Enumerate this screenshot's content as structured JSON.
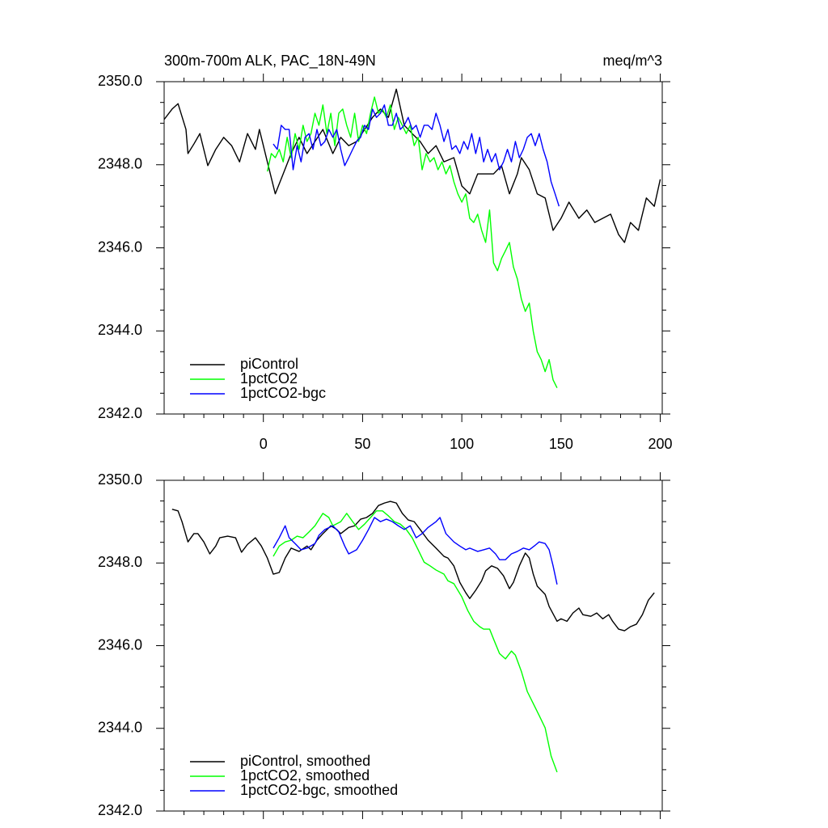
{
  "chart_data": [
    {
      "type": "line",
      "title": "300m-700m ALK, PAC_18N-49N",
      "units_label": "meq/m^3",
      "xlim": [
        -50,
        201
      ],
      "ylim": [
        2342,
        2350
      ],
      "xticks": [
        0,
        50,
        100,
        150,
        200
      ],
      "xminorticks": [
        -40,
        -30,
        -20,
        -10,
        10,
        20,
        30,
        40,
        60,
        70,
        80,
        90,
        110,
        120,
        130,
        140,
        160,
        170,
        180,
        190
      ],
      "yticks": [
        {
          "value": 2342,
          "label": "2342.0"
        },
        {
          "value": 2344,
          "label": "2344.0"
        },
        {
          "value": 2346,
          "label": "2346.0"
        },
        {
          "value": 2348,
          "label": "2348.0"
        },
        {
          "value": 2350,
          "label": "2350.0"
        }
      ],
      "yminorticks": [
        2342.5,
        2343,
        2343.5,
        2344.5,
        2345,
        2345.5,
        2346.5,
        2347,
        2347.5,
        2348.5,
        2349,
        2349.5
      ],
      "xtick_labels": true,
      "legend": "lower left",
      "series": [
        {
          "name": "piControl",
          "color": "#000000",
          "x": [
            -50,
            -46,
            -43,
            -39,
            -38,
            -35,
            -32,
            -28,
            -24,
            -20,
            -16,
            -12,
            -8,
            -4,
            -2,
            2,
            6,
            10,
            14,
            18,
            22,
            26,
            30,
            35,
            39,
            43,
            47,
            51,
            55,
            59,
            63,
            67,
            71,
            75,
            79,
            83,
            87,
            91,
            96,
            100,
            104,
            108,
            112,
            116,
            120,
            124,
            128,
            130,
            134,
            138,
            142,
            146,
            150,
            154,
            159,
            163,
            167,
            171,
            175,
            179,
            182,
            185,
            189,
            193,
            197,
            200
          ],
          "values": [
            2349.09,
            2349.34,
            2349.47,
            2348.85,
            2348.27,
            2348.5,
            2348.75,
            2347.98,
            2348.37,
            2348.66,
            2348.46,
            2348.07,
            2348.75,
            2348.37,
            2348.85,
            2348.07,
            2347.3,
            2347.78,
            2348.27,
            2348.66,
            2348.27,
            2348.56,
            2348.85,
            2348.27,
            2348.66,
            2348.46,
            2348.56,
            2348.85,
            2349.14,
            2349.34,
            2349.14,
            2349.82,
            2348.95,
            2348.75,
            2348.56,
            2348.27,
            2348.46,
            2348.07,
            2348.17,
            2347.49,
            2347.3,
            2347.78,
            2347.78,
            2347.78,
            2347.98,
            2347.3,
            2347.78,
            2348.17,
            2347.88,
            2347.3,
            2347.2,
            2346.42,
            2346.71,
            2347.1,
            2346.71,
            2346.91,
            2346.61,
            2346.71,
            2346.81,
            2346.32,
            2346.13,
            2346.61,
            2346.42,
            2347.2,
            2347.0,
            2347.65
          ]
        },
        {
          "name": "1pctCO2",
          "color": "#00ff00",
          "x": [
            2,
            4,
            6,
            8,
            10,
            12,
            14,
            16,
            18,
            20,
            22,
            24,
            26,
            28,
            30,
            32,
            34,
            36,
            38,
            40,
            42,
            44,
            46,
            48,
            50,
            52,
            54,
            56,
            58,
            60,
            62,
            64,
            66,
            68,
            70,
            72,
            74,
            76,
            78,
            80,
            82,
            84,
            86,
            88,
            90,
            92,
            94,
            96,
            98,
            100,
            102,
            104,
            106,
            108,
            110,
            112,
            114,
            116,
            118,
            120,
            122,
            124,
            126,
            128,
            130,
            132,
            134,
            136,
            138,
            140,
            142,
            144,
            146,
            148
          ],
          "values": [
            2347.84,
            2348.27,
            2348.17,
            2348.37,
            2348.07,
            2348.66,
            2348.17,
            2348.75,
            2348.37,
            2348.95,
            2348.56,
            2348.75,
            2349.24,
            2348.95,
            2349.44,
            2348.75,
            2349.24,
            2348.46,
            2349.24,
            2349.34,
            2348.95,
            2348.66,
            2349.24,
            2348.56,
            2348.95,
            2348.75,
            2349.24,
            2349.63,
            2349.24,
            2349.34,
            2349.14,
            2349.44,
            2348.85,
            2349.14,
            2348.95,
            2348.75,
            2348.95,
            2348.46,
            2348.66,
            2347.88,
            2348.27,
            2348.07,
            2348.17,
            2347.88,
            2348.07,
            2347.78,
            2347.98,
            2347.59,
            2347.3,
            2347.1,
            2347.3,
            2346.71,
            2346.61,
            2346.81,
            2346.42,
            2346.13,
            2346.91,
            2345.64,
            2345.45,
            2345.74,
            2345.93,
            2346.13,
            2345.54,
            2345.25,
            2344.77,
            2344.47,
            2344.67,
            2343.99,
            2343.5,
            2343.31,
            2343.02,
            2343.31,
            2342.82,
            2342.63
          ]
        },
        {
          "name": "1pctCO2-bgc",
          "color": "#0000ff",
          "x": [
            5,
            7,
            9,
            11,
            13,
            15,
            17,
            19,
            21,
            23,
            25,
            27,
            29,
            31,
            33,
            35,
            37,
            39,
            41,
            43,
            45,
            47,
            49,
            51,
            53,
            55,
            57,
            59,
            61,
            63,
            65,
            67,
            69,
            71,
            73,
            75,
            77,
            79,
            81,
            83,
            85,
            87,
            89,
            91,
            93,
            95,
            97,
            99,
            101,
            103,
            105,
            107,
            109,
            111,
            113,
            115,
            117,
            119,
            121,
            123,
            125,
            127,
            129,
            131,
            133,
            135,
            137,
            139,
            141,
            143,
            145,
            147,
            149
          ],
          "values": [
            2348.5,
            2348.37,
            2348.95,
            2348.85,
            2348.85,
            2347.88,
            2348.46,
            2348.07,
            2348.66,
            2348.75,
            2348.37,
            2348.85,
            2348.46,
            2348.56,
            2348.85,
            2348.66,
            2348.85,
            2348.37,
            2347.98,
            2348.17,
            2348.37,
            2348.56,
            2348.66,
            2348.95,
            2348.85,
            2349.34,
            2349.14,
            2349.24,
            2349.44,
            2348.95,
            2348.95,
            2349.24,
            2348.85,
            2348.95,
            2349.14,
            2348.85,
            2348.95,
            2348.66,
            2348.95,
            2348.95,
            2348.85,
            2349.24,
            2348.95,
            2348.56,
            2348.85,
            2348.37,
            2348.46,
            2348.27,
            2348.56,
            2348.37,
            2348.75,
            2348.27,
            2348.66,
            2348.07,
            2348.37,
            2348.07,
            2348.27,
            2347.88,
            2348.07,
            2348.37,
            2348.07,
            2348.56,
            2348.17,
            2348.37,
            2348.66,
            2348.75,
            2348.46,
            2348.75,
            2348.37,
            2348.07,
            2347.59,
            2347.3,
            2347.0
          ]
        }
      ]
    },
    {
      "type": "line",
      "xlim": [
        -50,
        201
      ],
      "ylim": [
        2342,
        2350
      ],
      "xticks": [
        0,
        50,
        100,
        150,
        200
      ],
      "xminorticks": [
        -40,
        -30,
        -20,
        -10,
        10,
        20,
        30,
        40,
        60,
        70,
        80,
        90,
        110,
        120,
        130,
        140,
        160,
        170,
        180,
        190
      ],
      "yticks": [
        {
          "value": 2342,
          "label": "2342.0"
        },
        {
          "value": 2344,
          "label": "2344.0"
        },
        {
          "value": 2346,
          "label": "2346.0"
        },
        {
          "value": 2348,
          "label": "2348.0"
        },
        {
          "value": 2350,
          "label": "2350.0"
        }
      ],
      "yminorticks": [
        2342.5,
        2343,
        2343.5,
        2344.5,
        2345,
        2345.5,
        2346.5,
        2347,
        2347.5,
        2348.5,
        2349,
        2349.5
      ],
      "xtick_labels": false,
      "legend": "lower left",
      "series": [
        {
          "name": "piControl, smoothed",
          "color": "#000000",
          "x": [
            -46,
            -43,
            -41,
            -38,
            -35,
            -33,
            -30,
            -27,
            -24,
            -22,
            -18,
            -14,
            -11,
            -8,
            -4,
            -1,
            2,
            5,
            8,
            11,
            14,
            18,
            22,
            24,
            27,
            30,
            34,
            37,
            39,
            43,
            46,
            49,
            52,
            55,
            58,
            61,
            64,
            67,
            70,
            73,
            76,
            79,
            83,
            87,
            91,
            93,
            96,
            99,
            102,
            104,
            107,
            110,
            112,
            115,
            118,
            121,
            124,
            126,
            129,
            132,
            134,
            136,
            138,
            140,
            142,
            144,
            148,
            150,
            153,
            156,
            159,
            161,
            165,
            168,
            171,
            174,
            176,
            179,
            182,
            185,
            188,
            191,
            194,
            197
          ],
          "values": [
            2349.3,
            2349.26,
            2349.0,
            2348.51,
            2348.71,
            2348.71,
            2348.51,
            2348.22,
            2348.41,
            2348.61,
            2348.65,
            2348.61,
            2348.26,
            2348.45,
            2348.61,
            2348.41,
            2348.12,
            2347.73,
            2347.77,
            2348.12,
            2348.36,
            2348.28,
            2348.41,
            2348.32,
            2348.55,
            2348.71,
            2348.9,
            2348.81,
            2348.71,
            2348.86,
            2348.9,
            2349.06,
            2349.1,
            2349.2,
            2349.39,
            2349.45,
            2349.49,
            2349.45,
            2349.2,
            2349.04,
            2349.0,
            2348.81,
            2348.55,
            2348.36,
            2348.16,
            2348.12,
            2347.93,
            2347.53,
            2347.28,
            2347.14,
            2347.34,
            2347.57,
            2347.81,
            2347.93,
            2347.87,
            2347.69,
            2347.38,
            2347.53,
            2347.93,
            2348.24,
            2348.12,
            2347.73,
            2347.44,
            2347.34,
            2347.24,
            2346.95,
            2346.59,
            2346.65,
            2346.59,
            2346.79,
            2346.91,
            2346.75,
            2346.71,
            2346.79,
            2346.65,
            2346.75,
            2346.59,
            2346.4,
            2346.36,
            2346.46,
            2346.52,
            2346.75,
            2347.1,
            2347.28
          ]
        },
        {
          "name": "1pctCO2, smoothed",
          "color": "#00ff00",
          "x": [
            5,
            8,
            11,
            14,
            17,
            20,
            23,
            26,
            30,
            33,
            35,
            39,
            42,
            45,
            48,
            51,
            54,
            57,
            60,
            63,
            66,
            69,
            72,
            75,
            78,
            81,
            84,
            87,
            91,
            93,
            96,
            100,
            103,
            106,
            109,
            111,
            114,
            116,
            119,
            122,
            125,
            127,
            130,
            133,
            136,
            139,
            142,
            145,
            148
          ],
          "values": [
            2348.16,
            2348.41,
            2348.51,
            2348.55,
            2348.65,
            2348.61,
            2348.75,
            2348.9,
            2349.2,
            2349.1,
            2348.9,
            2349.0,
            2349.2,
            2349.0,
            2348.81,
            2348.94,
            2349.1,
            2349.26,
            2349.26,
            2349.14,
            2349.0,
            2348.94,
            2348.81,
            2348.61,
            2348.32,
            2348.02,
            2347.93,
            2347.83,
            2347.73,
            2347.57,
            2347.5,
            2347.18,
            2346.85,
            2346.59,
            2346.46,
            2346.4,
            2346.4,
            2346.16,
            2345.81,
            2345.68,
            2345.87,
            2345.77,
            2345.38,
            2344.89,
            2344.6,
            2344.31,
            2344.01,
            2343.33,
            2342.94
          ]
        },
        {
          "name": "1pctCO2-bgc, smoothed",
          "color": "#0000ff",
          "x": [
            5,
            8,
            11,
            13,
            16,
            19,
            22,
            26,
            28,
            31,
            35,
            38,
            41,
            43,
            47,
            50,
            53,
            56,
            59,
            62,
            65,
            68,
            71,
            74,
            77,
            80,
            83,
            87,
            89,
            92,
            96,
            99,
            102,
            104,
            108,
            111,
            114,
            117,
            119,
            122,
            125,
            128,
            131,
            134,
            137,
            139,
            142,
            144,
            146,
            148
          ],
          "values": [
            2348.36,
            2348.61,
            2348.9,
            2348.61,
            2348.47,
            2348.32,
            2348.36,
            2348.47,
            2348.67,
            2348.81,
            2348.9,
            2348.75,
            2348.41,
            2348.22,
            2348.32,
            2348.55,
            2348.81,
            2349.1,
            2349.0,
            2349.06,
            2349.0,
            2348.9,
            2348.81,
            2348.9,
            2348.61,
            2348.71,
            2348.86,
            2349.0,
            2349.1,
            2348.71,
            2348.51,
            2348.41,
            2348.32,
            2348.36,
            2348.28,
            2348.32,
            2348.36,
            2348.22,
            2348.08,
            2348.08,
            2348.22,
            2348.28,
            2348.36,
            2348.32,
            2348.43,
            2348.51,
            2348.47,
            2348.32,
            2347.93,
            2347.48
          ]
        }
      ]
    }
  ]
}
